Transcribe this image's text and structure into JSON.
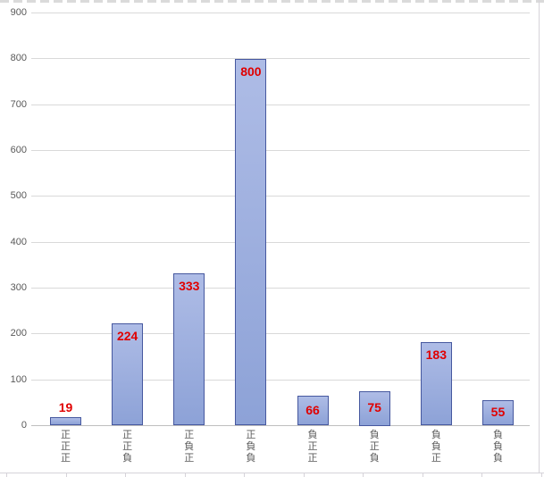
{
  "chart_data": {
    "type": "bar",
    "title": "",
    "xlabel": "",
    "ylabel": "",
    "categories": [
      "正正正",
      "正正負",
      "正負正",
      "正負負",
      "負正正",
      "負正負",
      "負負正",
      "負負負"
    ],
    "values": [
      19,
      224,
      333,
      800,
      66,
      75,
      183,
      55
    ],
    "data_labels": [
      "19",
      "224",
      "333",
      "800",
      "66",
      "75",
      "183",
      "55"
    ],
    "ylim": [
      0,
      900
    ],
    "ytick_interval": 100,
    "yticks": [
      "0",
      "100",
      "200",
      "300",
      "400",
      "500",
      "600",
      "700",
      "800",
      "900"
    ],
    "grid": "horizontal-major",
    "legend": "none",
    "colors": {
      "bar_fill_top": "#aebce6",
      "bar_fill_bottom": "#8da2d7",
      "bar_border": "#46589f",
      "gridline": "#d9d9d9",
      "axis_line": "#bfbfbf",
      "tick_label": "#595959",
      "data_label": "#e00000",
      "sheet_line": "#d6d3d9"
    }
  }
}
